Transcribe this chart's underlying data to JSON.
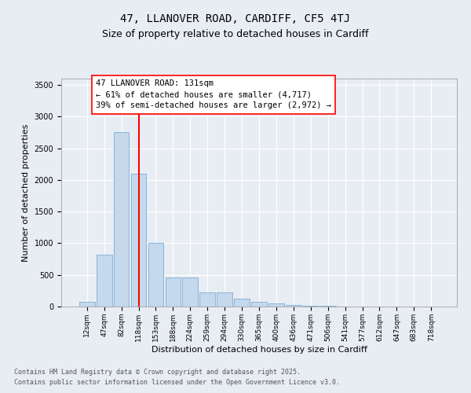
{
  "title_line1": "47, LLANOVER ROAD, CARDIFF, CF5 4TJ",
  "title_line2": "Size of property relative to detached houses in Cardiff",
  "xlabel": "Distribution of detached houses by size in Cardiff",
  "ylabel": "Number of detached properties",
  "categories": [
    "12sqm",
    "47sqm",
    "82sqm",
    "118sqm",
    "153sqm",
    "188sqm",
    "224sqm",
    "259sqm",
    "294sqm",
    "330sqm",
    "365sqm",
    "400sqm",
    "436sqm",
    "471sqm",
    "506sqm",
    "541sqm",
    "577sqm",
    "612sqm",
    "647sqm",
    "683sqm",
    "718sqm"
  ],
  "values": [
    70,
    820,
    2750,
    2100,
    1010,
    460,
    460,
    220,
    220,
    130,
    80,
    50,
    25,
    15,
    10,
    5,
    3,
    2,
    1,
    1,
    0
  ],
  "bar_color": "#c5d8ec",
  "bar_edge_color": "#7aadd4",
  "vline_x_index": 3,
  "vline_color": "red",
  "annotation_text": "47 LLANOVER ROAD: 131sqm\n← 61% of detached houses are smaller (4,717)\n39% of semi-detached houses are larger (2,972) →",
  "annotation_box_color": "white",
  "annotation_box_edge_color": "red",
  "annotation_fontsize": 7.5,
  "ylim": [
    0,
    3600
  ],
  "yticks": [
    0,
    500,
    1000,
    1500,
    2000,
    2500,
    3000,
    3500
  ],
  "background_color": "#e8edf4",
  "plot_background": "#e8edf4",
  "footer_line1": "Contains HM Land Registry data © Crown copyright and database right 2025.",
  "footer_line2": "Contains public sector information licensed under the Open Government Licence v3.0.",
  "title_fontsize": 10,
  "subtitle_fontsize": 9,
  "axis_label_fontsize": 8,
  "tick_fontsize": 7,
  "footer_fontsize": 6
}
